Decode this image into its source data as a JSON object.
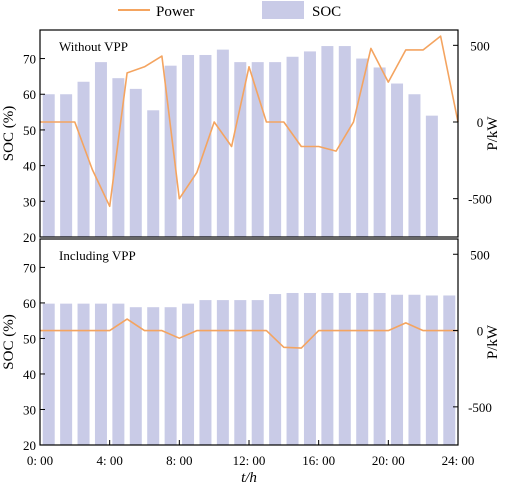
{
  "chart_data": {
    "type": "bar+line",
    "legend": [
      {
        "label": "Power",
        "kind": "line",
        "color": "#f4a460"
      },
      {
        "label": "SOC",
        "kind": "bar",
        "color": "#c9cbe7"
      }
    ],
    "legend_placement": "top-center",
    "xlabel": "t/h",
    "x_tick_labels": [
      "0: 00",
      "4: 00",
      "8: 00",
      "12: 00",
      "16: 00",
      "20: 00",
      "24: 00"
    ],
    "x_tick_hours": [
      0,
      4,
      8,
      12,
      16,
      20,
      24
    ],
    "xlim": [
      0,
      24
    ],
    "hours": [
      0,
      1,
      2,
      3,
      4,
      5,
      6,
      7,
      8,
      9,
      10,
      11,
      12,
      13,
      14,
      15,
      16,
      17,
      18,
      19,
      20,
      21,
      22,
      23,
      24
    ],
    "bar_hours": [
      0.5,
      1.5,
      2.5,
      3.5,
      4.5,
      5.5,
      6.5,
      7.5,
      8.5,
      9.5,
      10.5,
      11.5,
      12.5,
      13.5,
      14.5,
      15.5,
      16.5,
      17.5,
      18.5,
      19.5,
      20.5,
      21.5,
      22.5,
      23.5
    ],
    "panels": [
      {
        "title": "Without VPP",
        "soc_label": "SOC (%)",
        "soc_ylim": [
          20,
          78
        ],
        "soc_ticks": [
          20,
          30,
          40,
          50,
          60,
          70
        ],
        "power_label": "P/kW",
        "power_ylim": [
          -750,
          600
        ],
        "power_ticks": [
          -500,
          0,
          500
        ],
        "soc": [
          60,
          60,
          63.5,
          69,
          64.5,
          61.5,
          55.5,
          68,
          71,
          71,
          72.5,
          69,
          69,
          69,
          70.5,
          72,
          73.5,
          73.5,
          70,
          67.5,
          63,
          60,
          54,
          null
        ],
        "power": [
          0,
          0,
          0,
          -310,
          -550,
          320,
          360,
          430,
          -500,
          -330,
          0,
          -160,
          360,
          0,
          0,
          -160,
          -160,
          -190,
          0,
          480,
          260,
          470,
          470,
          560,
          0
        ]
      },
      {
        "title": "Including VPP",
        "soc_label": "SOC (%)",
        "soc_ylim": [
          20,
          78
        ],
        "soc_ticks": [
          20,
          30,
          40,
          50,
          60,
          70
        ],
        "power_label": "P/kW",
        "power_ylim": [
          -750,
          600
        ],
        "power_ticks": [
          -500,
          0,
          500
        ],
        "soc": [
          59.8,
          59.8,
          59.8,
          59.8,
          59.8,
          58.8,
          58.8,
          58.8,
          59.8,
          60.8,
          60.8,
          60.8,
          60.8,
          62.5,
          62.8,
          62.8,
          62.8,
          62.8,
          62.8,
          62.8,
          62.3,
          62.3,
          62.1,
          62.1
        ],
        "power": [
          0,
          0,
          0,
          0,
          0,
          75,
          0,
          0,
          -50,
          0,
          0,
          0,
          0,
          0,
          -110,
          -115,
          0,
          0,
          0,
          0,
          0,
          50,
          0,
          0,
          0
        ]
      }
    ]
  }
}
